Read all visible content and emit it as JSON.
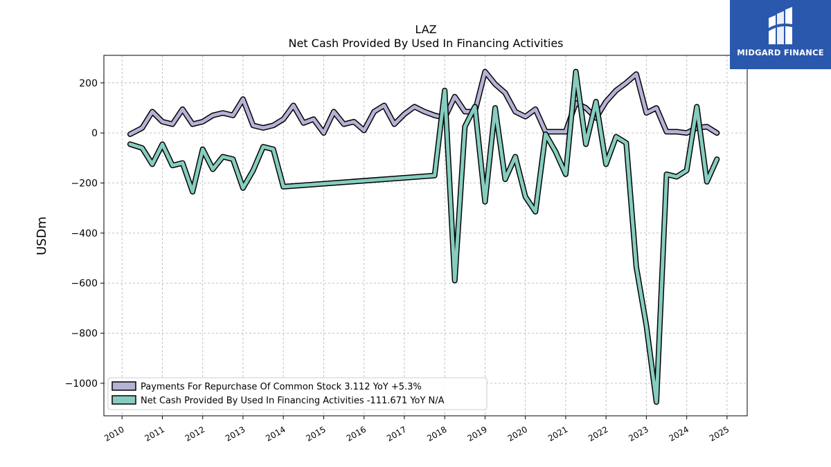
{
  "chart_data": {
    "type": "line",
    "title": "LAZ",
    "subtitle": "Net Cash Provided By Used In Financing Activities",
    "ylabel": "USDm",
    "xlabel": "",
    "ylim": [
      -1130,
      310
    ],
    "xlim": [
      2009.55,
      2025.5
    ],
    "yticks": [
      200,
      0,
      -200,
      -400,
      -600,
      -800,
      -1000
    ],
    "ytick_labels": [
      "200",
      "0",
      "−200",
      "−400",
      "−600",
      "−800",
      "−1000"
    ],
    "xticks": [
      2010,
      2011,
      2012,
      2013,
      2014,
      2015,
      2016,
      2017,
      2018,
      2019,
      2020,
      2021,
      2022,
      2023,
      2024,
      2025
    ],
    "xtick_labels": [
      "2010",
      "2011",
      "2012",
      "2013",
      "2014",
      "2015",
      "2016",
      "2017",
      "2018",
      "2019",
      "2020",
      "2021",
      "2022",
      "2023",
      "2024",
      "2025"
    ],
    "grid": true,
    "legend_position": "lower-left",
    "series": [
      {
        "name": "Payments For Repurchase Of Common Stock",
        "legend_label": "Payments For Repurchase Of Common Stock  3.112 YoY +5.3%",
        "color": "#b5b2d6",
        "x": [
          2010.2,
          2010.5,
          2010.75,
          2011.0,
          2011.25,
          2011.5,
          2011.75,
          2012.0,
          2012.25,
          2012.5,
          2012.75,
          2013.0,
          2013.25,
          2013.5,
          2013.75,
          2014.0,
          2014.25,
          2014.5,
          2014.75,
          2015.0,
          2015.25,
          2015.5,
          2015.75,
          2016.0,
          2016.25,
          2016.5,
          2016.75,
          2017.0,
          2017.25,
          2017.5,
          2017.75,
          2018.0,
          2018.25,
          2018.5,
          2018.75,
          2019.0,
          2019.25,
          2019.5,
          2019.75,
          2020.0,
          2020.25,
          2020.5,
          2020.75,
          2021.0,
          2021.25,
          2021.5,
          2021.75,
          2022.0,
          2022.25,
          2022.5,
          2022.75,
          2023.0,
          2023.25,
          2023.5,
          2023.75,
          2024.0,
          2024.25,
          2024.5,
          2024.75
        ],
        "values": [
          -5,
          20,
          85,
          45,
          35,
          95,
          35,
          45,
          70,
          80,
          70,
          135,
          30,
          20,
          30,
          55,
          110,
          40,
          55,
          0,
          85,
          35,
          45,
          10,
          85,
          110,
          35,
          75,
          105,
          85,
          70,
          60,
          145,
          85,
          85,
          245,
          195,
          160,
          85,
          65,
          95,
          5,
          5,
          5,
          120,
          100,
          60,
          125,
          170,
          200,
          235,
          80,
          100,
          5,
          5,
          0,
          20,
          25,
          0
        ]
      },
      {
        "name": "Net Cash Provided By Used In Financing Activities",
        "legend_label": "Net Cash Provided By Used In Financing Activities  -111.671 YoY N/A",
        "color": "#86cdbf",
        "x": [
          2010.2,
          2010.5,
          2010.75,
          2011.0,
          2011.25,
          2011.5,
          2011.75,
          2012.0,
          2012.25,
          2012.5,
          2012.75,
          2013.0,
          2013.25,
          2013.5,
          2013.75,
          2014.0,
          2017.75,
          2018.0,
          2018.25,
          2018.5,
          2018.75,
          2019.0,
          2019.25,
          2019.5,
          2019.75,
          2020.0,
          2020.25,
          2020.5,
          2020.75,
          2021.0,
          2021.25,
          2021.5,
          2021.75,
          2022.0,
          2022.25,
          2022.5,
          2022.75,
          2023.0,
          2023.25,
          2023.5,
          2023.75,
          2024.0,
          2024.25,
          2024.5,
          2024.75
        ],
        "values": [
          -45,
          -60,
          -125,
          -45,
          -130,
          -120,
          -235,
          -65,
          -145,
          -95,
          -105,
          -220,
          -150,
          -55,
          -65,
          -215,
          -170,
          170,
          -590,
          25,
          105,
          -275,
          100,
          -185,
          -95,
          -255,
          -315,
          -5,
          -75,
          -165,
          245,
          -45,
          125,
          -125,
          -15,
          -40,
          -535,
          -770,
          -1075,
          -165,
          -175,
          -150,
          105,
          -195,
          -105
        ]
      }
    ]
  },
  "logo": {
    "text": "MIDGARD FINANCE"
  }
}
